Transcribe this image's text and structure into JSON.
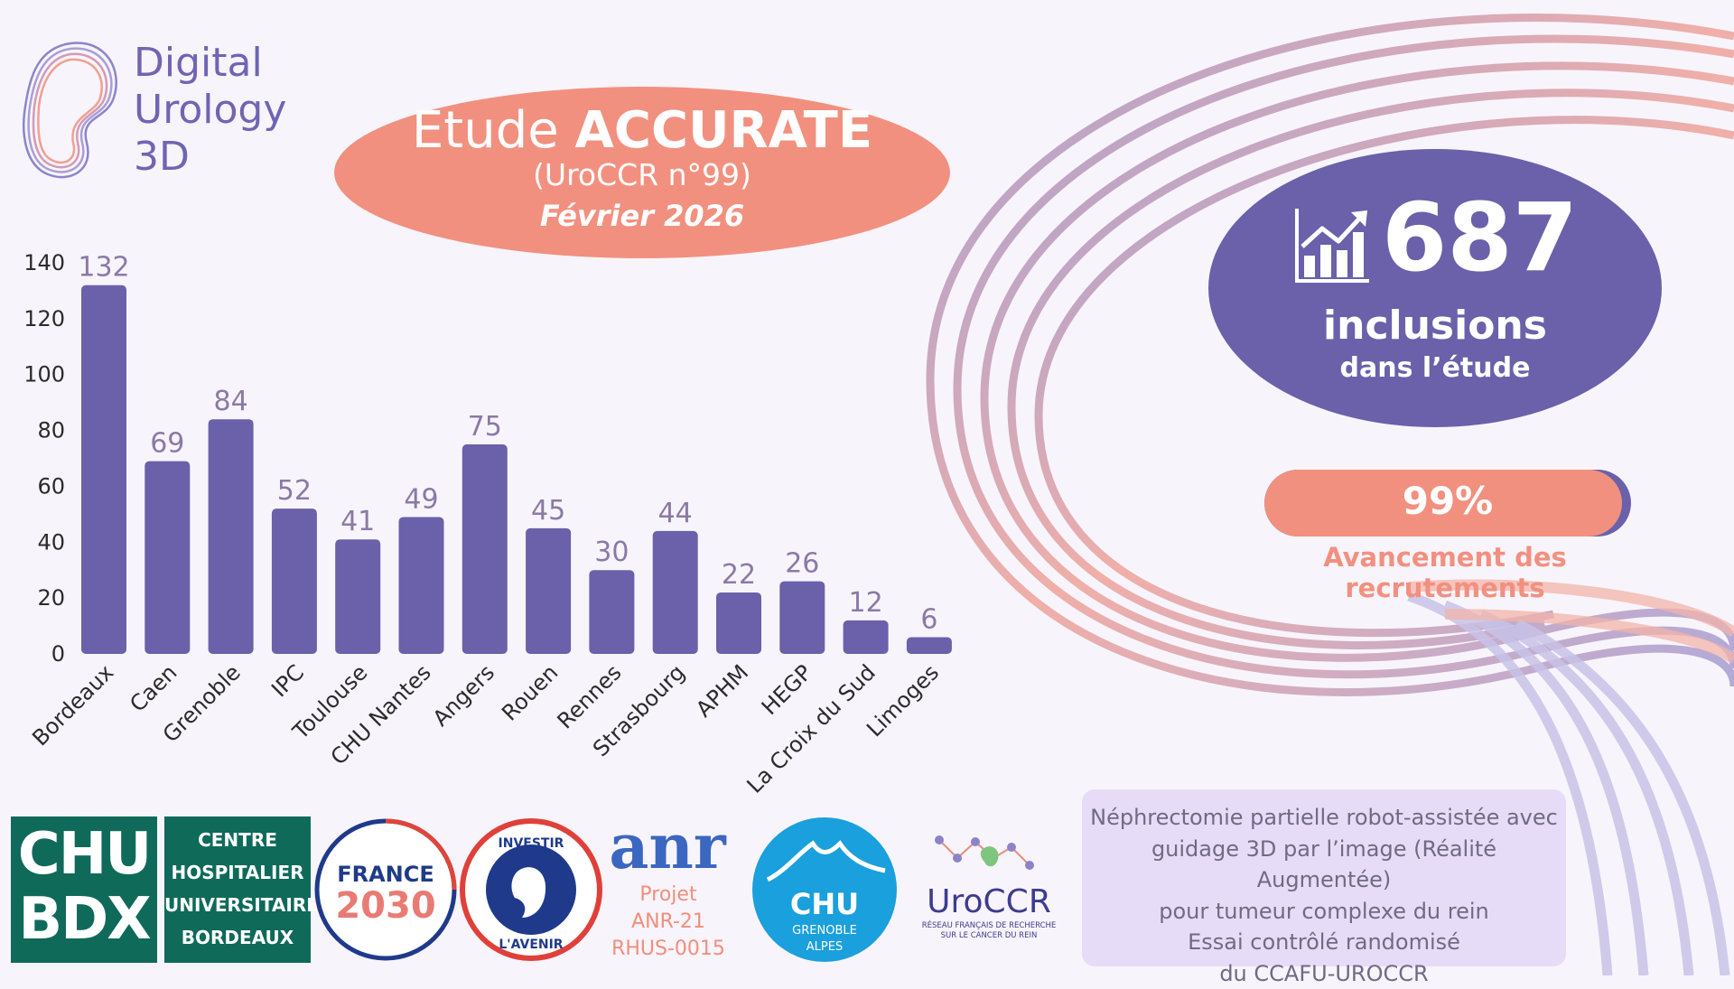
{
  "logo": {
    "lines": [
      "Digital",
      "Urology",
      "3D"
    ]
  },
  "title": {
    "prefix": "Etude",
    "name": "ACCURATE",
    "subtitle": "(UroCCR n°99)",
    "date": "Février 2026"
  },
  "stat": {
    "number": "687",
    "unit": "inclusions",
    "caption": "dans l’étude",
    "icon": "growth-chart-icon"
  },
  "progress": {
    "value": 0.99,
    "label": "99%",
    "caption": "Avancement des recrutements"
  },
  "chart_data": {
    "type": "bar",
    "categories": [
      "Bordeaux",
      "Caen",
      "Grenoble",
      "IPC",
      "Toulouse",
      "CHU Nantes",
      "Angers",
      "Rouen",
      "Rennes",
      "Strasbourg",
      "APHM",
      "HEGP",
      "La Croix du Sud",
      "Limoges"
    ],
    "values": [
      132,
      69,
      84,
      52,
      41,
      49,
      75,
      45,
      30,
      44,
      22,
      26,
      12,
      6
    ],
    "title": "",
    "xlabel": "",
    "ylabel": "",
    "ylim": [
      0,
      140
    ],
    "yticks": [
      0,
      20,
      40,
      60,
      80,
      100,
      120,
      140
    ],
    "grid": false,
    "data_labels": true,
    "bar_color": "#6a61aa",
    "label_color": "#8a7aa6"
  },
  "logos": {
    "chu_bdx": {
      "left": [
        "CHU",
        "BDX"
      ],
      "right": [
        "CENTRE",
        "HOSPITALIER",
        "UNIVERSITAIRE",
        "BORDEAUX"
      ]
    },
    "france2030": {
      "top": "FRANCE",
      "bottom": "2030"
    },
    "investir": {
      "top": "INVESTIR",
      "bottom": "L'AVENIR"
    },
    "anr": {
      "word": "anr",
      "lines": [
        "Projet",
        "ANR-21",
        "RHUS-0015"
      ]
    },
    "chu_grenoble": {
      "name": "CHU",
      "sub1": "GRENOBLE",
      "sub2": "ALPES"
    },
    "uroccr": {
      "name": "UroCCR",
      "sub1": "RÉSEAU FRANÇAIS DE RECHERCHE",
      "sub2": "SUR LE CANCER DU REIN"
    }
  },
  "description": [
    "Néphrectomie partielle robot-assistée avec",
    "guidage 3D par l’image (Réalité Augmentée)",
    "pour tumeur complexe du rein",
    "Essai contrôlé randomisé",
    "du CCAFU-UROCCR"
  ],
  "colors": {
    "purple": "#6a61aa",
    "salmon": "#f2907f",
    "background": "#f8f4fb",
    "chu_green": "#0f6a5a",
    "anr_blue": "#3b67c0",
    "grenoble_blue": "#1aa0dc"
  }
}
